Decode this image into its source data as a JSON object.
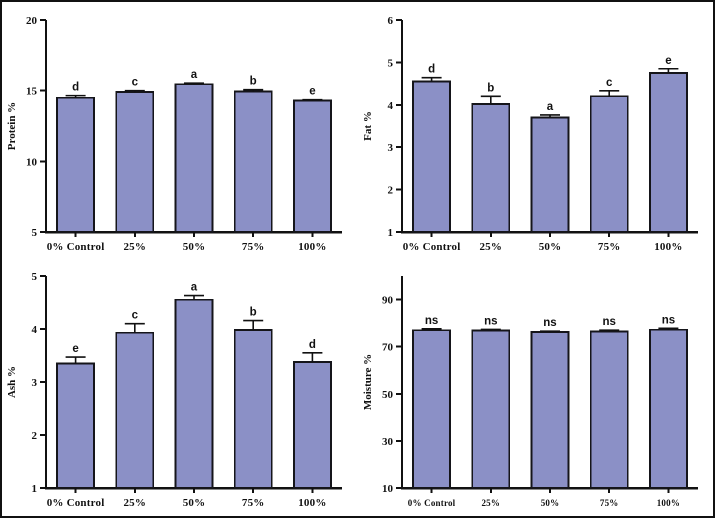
{
  "figure": {
    "background": "#ffffff",
    "border_color": "#111111",
    "bar_fill": "#8b90c6",
    "bar_stroke": "#15151a",
    "axis_color": "#111111",
    "text_color": "#111111"
  },
  "chart_data": [
    {
      "id": "protein",
      "type": "bar",
      "title": "",
      "xlabel": "",
      "ylabel": "Protein %",
      "categories": [
        "0% Control",
        "25%",
        "50%",
        "75%",
        "100%"
      ],
      "values": [
        14.5,
        14.9,
        15.45,
        14.95,
        14.3
      ],
      "errors": [
        0.15,
        0.1,
        0.08,
        0.12,
        0.06
      ],
      "sig_labels": [
        "d",
        "c",
        "a",
        "b",
        "e"
      ],
      "ylim": [
        5,
        20
      ],
      "yticks": [
        5,
        10,
        15,
        20
      ],
      "grid": false,
      "legend": "none",
      "small_x_labels": false
    },
    {
      "id": "fat",
      "type": "bar",
      "title": "",
      "xlabel": "",
      "ylabel": "Fat %",
      "categories": [
        "0% Control",
        "25%",
        "50%",
        "75%",
        "100%"
      ],
      "values": [
        4.55,
        4.02,
        3.7,
        4.2,
        4.75
      ],
      "errors": [
        0.09,
        0.18,
        0.06,
        0.13,
        0.1
      ],
      "sig_labels": [
        "d",
        "b",
        "a",
        "c",
        "e"
      ],
      "ylim": [
        1,
        6
      ],
      "yticks": [
        1,
        2,
        3,
        4,
        5,
        6
      ],
      "grid": false,
      "legend": "none",
      "small_x_labels": false
    },
    {
      "id": "ash",
      "type": "bar",
      "title": "",
      "xlabel": "",
      "ylabel": "Ash %",
      "categories": [
        "0% Control",
        "25%",
        "50%",
        "75%",
        "100%"
      ],
      "values": [
        3.35,
        3.93,
        4.55,
        3.98,
        3.38
      ],
      "errors": [
        0.12,
        0.17,
        0.08,
        0.18,
        0.17
      ],
      "sig_labels": [
        "e",
        "c",
        "a",
        "b",
        "d"
      ],
      "ylim": [
        1,
        5
      ],
      "yticks": [
        1,
        2,
        3,
        4,
        5
      ],
      "grid": false,
      "legend": "none",
      "small_x_labels": false
    },
    {
      "id": "moisture",
      "type": "bar",
      "title": "",
      "xlabel": "",
      "ylabel": "Moisture %",
      "categories": [
        "0% Control",
        "25%",
        "50%",
        "75%",
        "100%"
      ],
      "values": [
        77,
        76.8,
        76.2,
        76.5,
        77.2
      ],
      "errors": [
        0.6,
        0.5,
        0.4,
        0.5,
        0.6
      ],
      "sig_labels": [
        "ns",
        "ns",
        "ns",
        "ns",
        "ns"
      ],
      "ylim": [
        10,
        100
      ],
      "yticks": [
        10,
        30,
        50,
        70,
        90
      ],
      "grid": false,
      "legend": "none",
      "small_x_labels": true
    }
  ]
}
